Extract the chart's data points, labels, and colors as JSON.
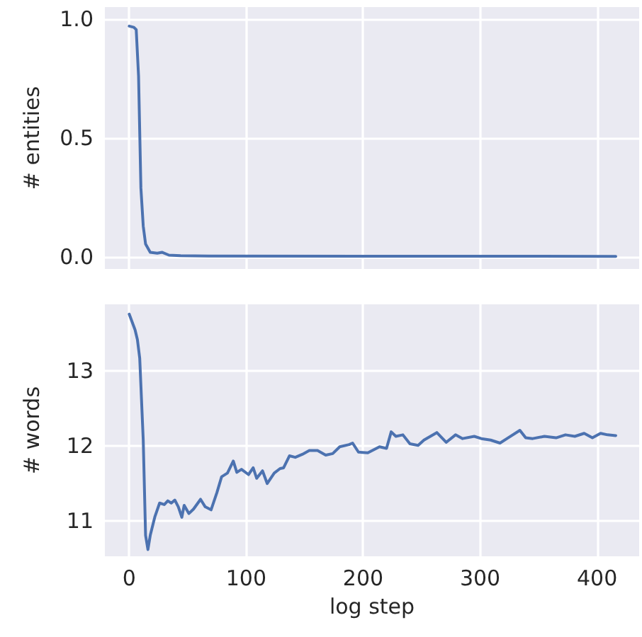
{
  "chart_data": [
    {
      "type": "line",
      "ylabel": "# entities",
      "x": [
        0,
        4,
        6,
        8,
        10,
        12,
        14,
        18,
        24,
        28,
        34,
        44,
        68,
        416
      ],
      "series": [
        {
          "color": "#4c72b0",
          "values": [
            0.97,
            0.965,
            0.955,
            0.76,
            0.29,
            0.13,
            0.055,
            0.02,
            0.016,
            0.02,
            0.008,
            0.006,
            0.004,
            0.003
          ]
        }
      ],
      "xlim": [
        -20.8,
        436
      ],
      "xticks": [
        0,
        100,
        200,
        300,
        400
      ],
      "ylim": [
        -0.05,
        1.05
      ],
      "yticks": [
        {
          "value": 0,
          "label": "0.0"
        },
        {
          "value": 0.5,
          "label": "0.5"
        },
        {
          "value": 1,
          "label": "1.0"
        }
      ],
      "grid": true,
      "tick_labels": "y",
      "marker": "none"
    },
    {
      "type": "line",
      "xlabel": "log step",
      "ylabel": "# words",
      "x": [
        0,
        5,
        7,
        9,
        12,
        14,
        16,
        18,
        22,
        26,
        30,
        33,
        36,
        39,
        42,
        45,
        47,
        51,
        55,
        61,
        65,
        70,
        75,
        79,
        84,
        89,
        92,
        96,
        102,
        106,
        109,
        114,
        118,
        124,
        129,
        132,
        137,
        142,
        148,
        154,
        161,
        168,
        174,
        180,
        188,
        191,
        196,
        204,
        214,
        220,
        224,
        228,
        234,
        240,
        247,
        252,
        263,
        271,
        279,
        285,
        295,
        301,
        309,
        317,
        323,
        334,
        339,
        345,
        355,
        365,
        373,
        381,
        389,
        396,
        403,
        409,
        416
      ],
      "series": [
        {
          "color": "#4c72b0",
          "values": [
            13.76,
            13.55,
            13.42,
            13.17,
            12.08,
            10.81,
            10.62,
            10.81,
            11.06,
            11.24,
            11.22,
            11.27,
            11.24,
            11.28,
            11.19,
            11.05,
            11.21,
            11.1,
            11.16,
            11.29,
            11.19,
            11.15,
            11.38,
            11.59,
            11.64,
            11.8,
            11.65,
            11.69,
            11.62,
            11.71,
            11.57,
            11.67,
            11.5,
            11.64,
            11.7,
            11.71,
            11.87,
            11.85,
            11.89,
            11.94,
            11.94,
            11.88,
            11.9,
            11.99,
            12.02,
            12.04,
            11.92,
            11.91,
            11.99,
            11.97,
            12.19,
            12.13,
            12.15,
            12.03,
            12.01,
            12.08,
            12.18,
            12.05,
            12.15,
            12.1,
            12.13,
            12.1,
            12.08,
            12.04,
            12.1,
            12.21,
            12.11,
            12.1,
            12.13,
            12.11,
            12.15,
            12.13,
            12.17,
            12.11,
            12.17,
            12.15,
            12.14
          ]
        }
      ],
      "xlim": [
        -20.8,
        436
      ],
      "xticks": [
        0,
        100,
        200,
        300,
        400
      ],
      "ylim": [
        10.53,
        13.89
      ],
      "yticks": [
        11,
        12,
        13
      ],
      "grid": true,
      "marker": "none"
    }
  ]
}
